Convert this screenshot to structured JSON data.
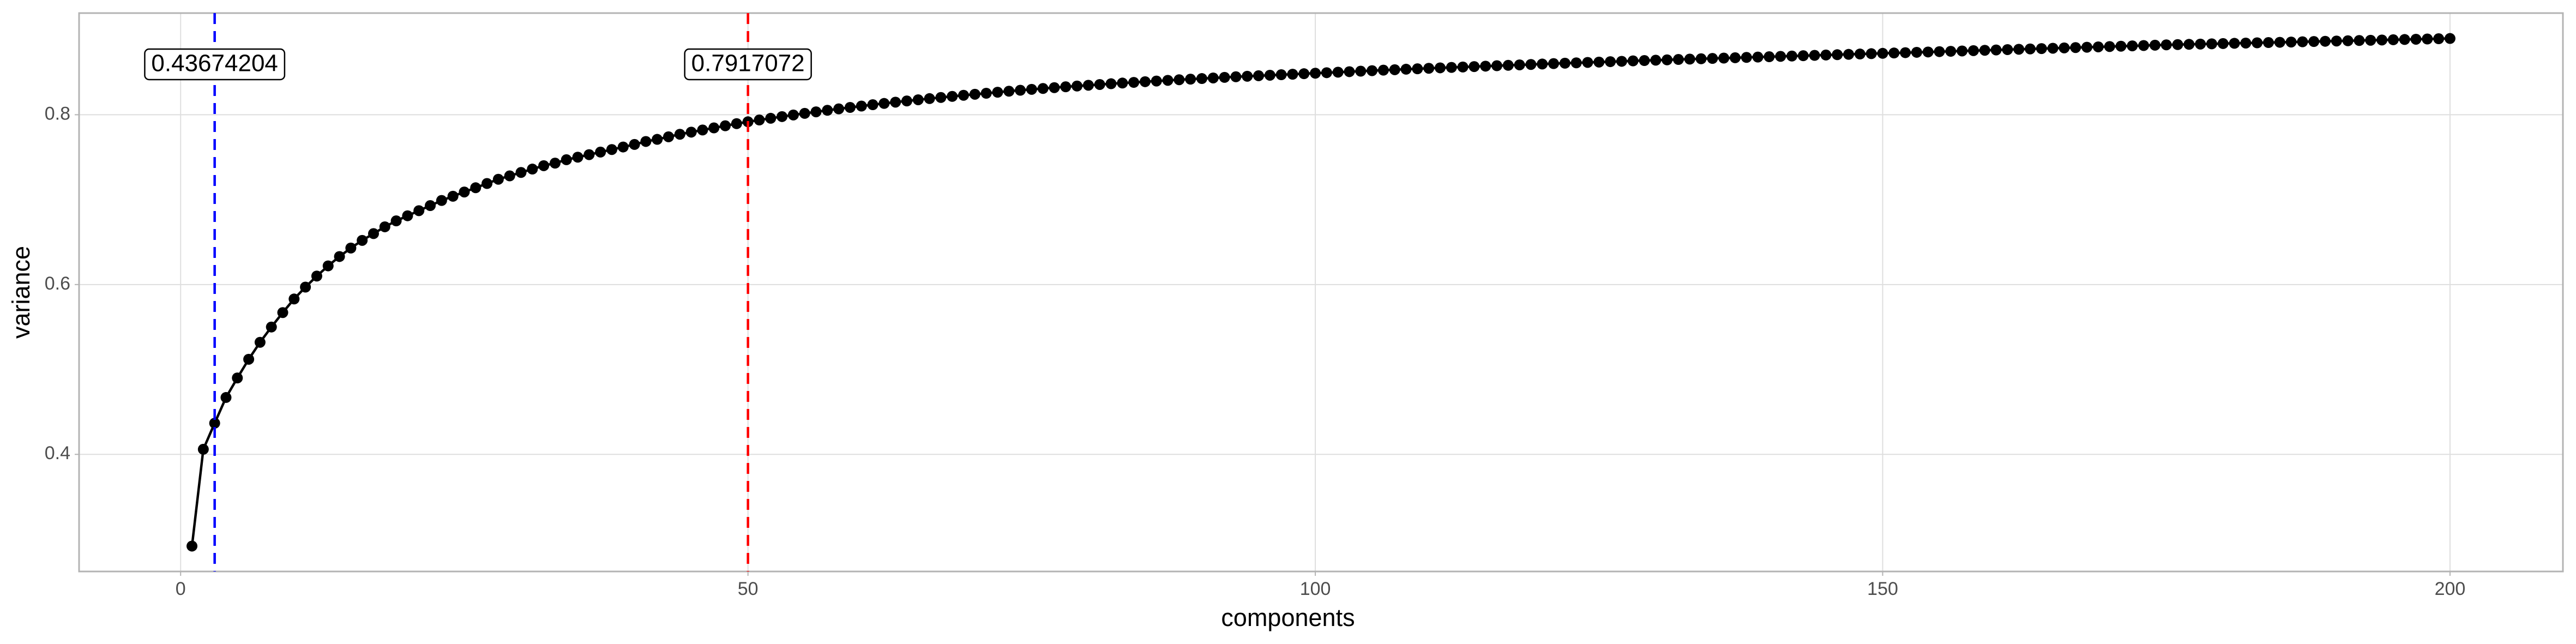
{
  "chart_data": {
    "type": "line",
    "xlabel": "components",
    "ylabel": "variance",
    "x": [
      1,
      2,
      3,
      4,
      5,
      6,
      7,
      8,
      9,
      10,
      11,
      12,
      13,
      14,
      15,
      16,
      17,
      18,
      19,
      20,
      21,
      22,
      23,
      24,
      25,
      26,
      27,
      28,
      29,
      30,
      31,
      32,
      33,
      34,
      35,
      36,
      37,
      38,
      39,
      40,
      41,
      42,
      43,
      44,
      45,
      46,
      47,
      48,
      49,
      50,
      51,
      52,
      53,
      54,
      55,
      56,
      57,
      58,
      59,
      60,
      61,
      62,
      63,
      64,
      65,
      66,
      67,
      68,
      69,
      70,
      71,
      72,
      73,
      74,
      75,
      76,
      77,
      78,
      79,
      80,
      81,
      82,
      83,
      84,
      85,
      86,
      87,
      88,
      89,
      90,
      91,
      92,
      93,
      94,
      95,
      96,
      97,
      98,
      99,
      100,
      101,
      102,
      103,
      104,
      105,
      106,
      107,
      108,
      109,
      110,
      111,
      112,
      113,
      114,
      115,
      116,
      117,
      118,
      119,
      120,
      121,
      122,
      123,
      124,
      125,
      126,
      127,
      128,
      129,
      130,
      131,
      132,
      133,
      134,
      135,
      136,
      137,
      138,
      139,
      140,
      141,
      142,
      143,
      144,
      145,
      146,
      147,
      148,
      149,
      150,
      151,
      152,
      153,
      154,
      155,
      156,
      157,
      158,
      159,
      160,
      161,
      162,
      163,
      164,
      165,
      166,
      167,
      168,
      169,
      170,
      171,
      172,
      173,
      174,
      175,
      176,
      177,
      178,
      179,
      180,
      181,
      182,
      183,
      184,
      185,
      186,
      187,
      188,
      189,
      190,
      191,
      192,
      193,
      194,
      195,
      196,
      197,
      198,
      199,
      200
    ],
    "series": [
      {
        "color": "#000000",
        "values": [
          0.292,
          0.406,
          0.43674204,
          0.467,
          0.49,
          0.512,
          0.532,
          0.55,
          0.567,
          0.583,
          0.597,
          0.61,
          0.622,
          0.633,
          0.643,
          0.652,
          0.66,
          0.668,
          0.675,
          0.681,
          0.687,
          0.693,
          0.699,
          0.704,
          0.709,
          0.714,
          0.719,
          0.724,
          0.728,
          0.732,
          0.736,
          0.74,
          0.743,
          0.747,
          0.75,
          0.753,
          0.756,
          0.759,
          0.762,
          0.765,
          0.7685,
          0.771,
          0.774,
          0.777,
          0.7795,
          0.782,
          0.7845,
          0.787,
          0.7895,
          0.7917072,
          0.7938,
          0.7958,
          0.7978,
          0.7997,
          0.8016,
          0.8034,
          0.8052,
          0.8069,
          0.8086,
          0.8102,
          0.8118,
          0.8133,
          0.8148,
          0.8162,
          0.8176,
          0.819,
          0.8203,
          0.8216,
          0.8229,
          0.8241,
          0.8253,
          0.8265,
          0.8277,
          0.8288,
          0.8299,
          0.8309,
          0.8319,
          0.8329,
          0.8338,
          0.8347,
          0.8356,
          0.8365,
          0.8373,
          0.8381,
          0.8389,
          0.8397,
          0.8405,
          0.8412,
          0.8419,
          0.8426,
          0.8433,
          0.844,
          0.8447,
          0.8453,
          0.8459,
          0.8465,
          0.8471,
          0.8477,
          0.8483,
          0.8489,
          0.8495,
          0.8501,
          0.8507,
          0.8513,
          0.8519,
          0.8525,
          0.853,
          0.8536,
          0.8541,
          0.8547,
          0.8552,
          0.8557,
          0.8562,
          0.8567,
          0.8572,
          0.8577,
          0.8582,
          0.8587,
          0.8592,
          0.8597,
          0.8602,
          0.8607,
          0.8611,
          0.8616,
          0.862,
          0.8625,
          0.8629,
          0.8634,
          0.8638,
          0.8642,
          0.8646,
          0.8651,
          0.8655,
          0.8659,
          0.8663,
          0.8667,
          0.8671,
          0.8675,
          0.8679,
          0.8683,
          0.8687,
          0.8691,
          0.8695,
          0.8699,
          0.8703,
          0.8707,
          0.8711,
          0.8715,
          0.8719,
          0.8723,
          0.8727,
          0.8731,
          0.8735,
          0.8739,
          0.8743,
          0.8747,
          0.8751,
          0.8755,
          0.8759,
          0.8763,
          0.8767,
          0.8771,
          0.8775,
          0.8779,
          0.8783,
          0.8787,
          0.8791,
          0.8795,
          0.8799,
          0.8803,
          0.8807,
          0.8811,
          0.8815,
          0.8819,
          0.8823,
          0.8826,
          0.8829,
          0.8832,
          0.8835,
          0.8838,
          0.8841,
          0.8844,
          0.8847,
          0.885,
          0.8853,
          0.8856,
          0.8859,
          0.8862,
          0.8865,
          0.8868,
          0.8871,
          0.8874,
          0.8877,
          0.888,
          0.8883,
          0.8886,
          0.8889,
          0.8892,
          0.8895,
          0.8898
        ]
      }
    ],
    "annotations": [
      {
        "x": 3,
        "label": "0.43674204",
        "color": "#0000ff"
      },
      {
        "x": 50,
        "label": "0.7917072",
        "color": "#ff0000"
      }
    ],
    "xlim": [
      -8.95,
      209.95
    ],
    "ylim": [
      0.2621,
      0.9197
    ],
    "xticks": [
      0,
      50,
      100,
      150,
      200
    ],
    "yticks": [
      0.4,
      0.6,
      0.8
    ],
    "grid": true
  }
}
